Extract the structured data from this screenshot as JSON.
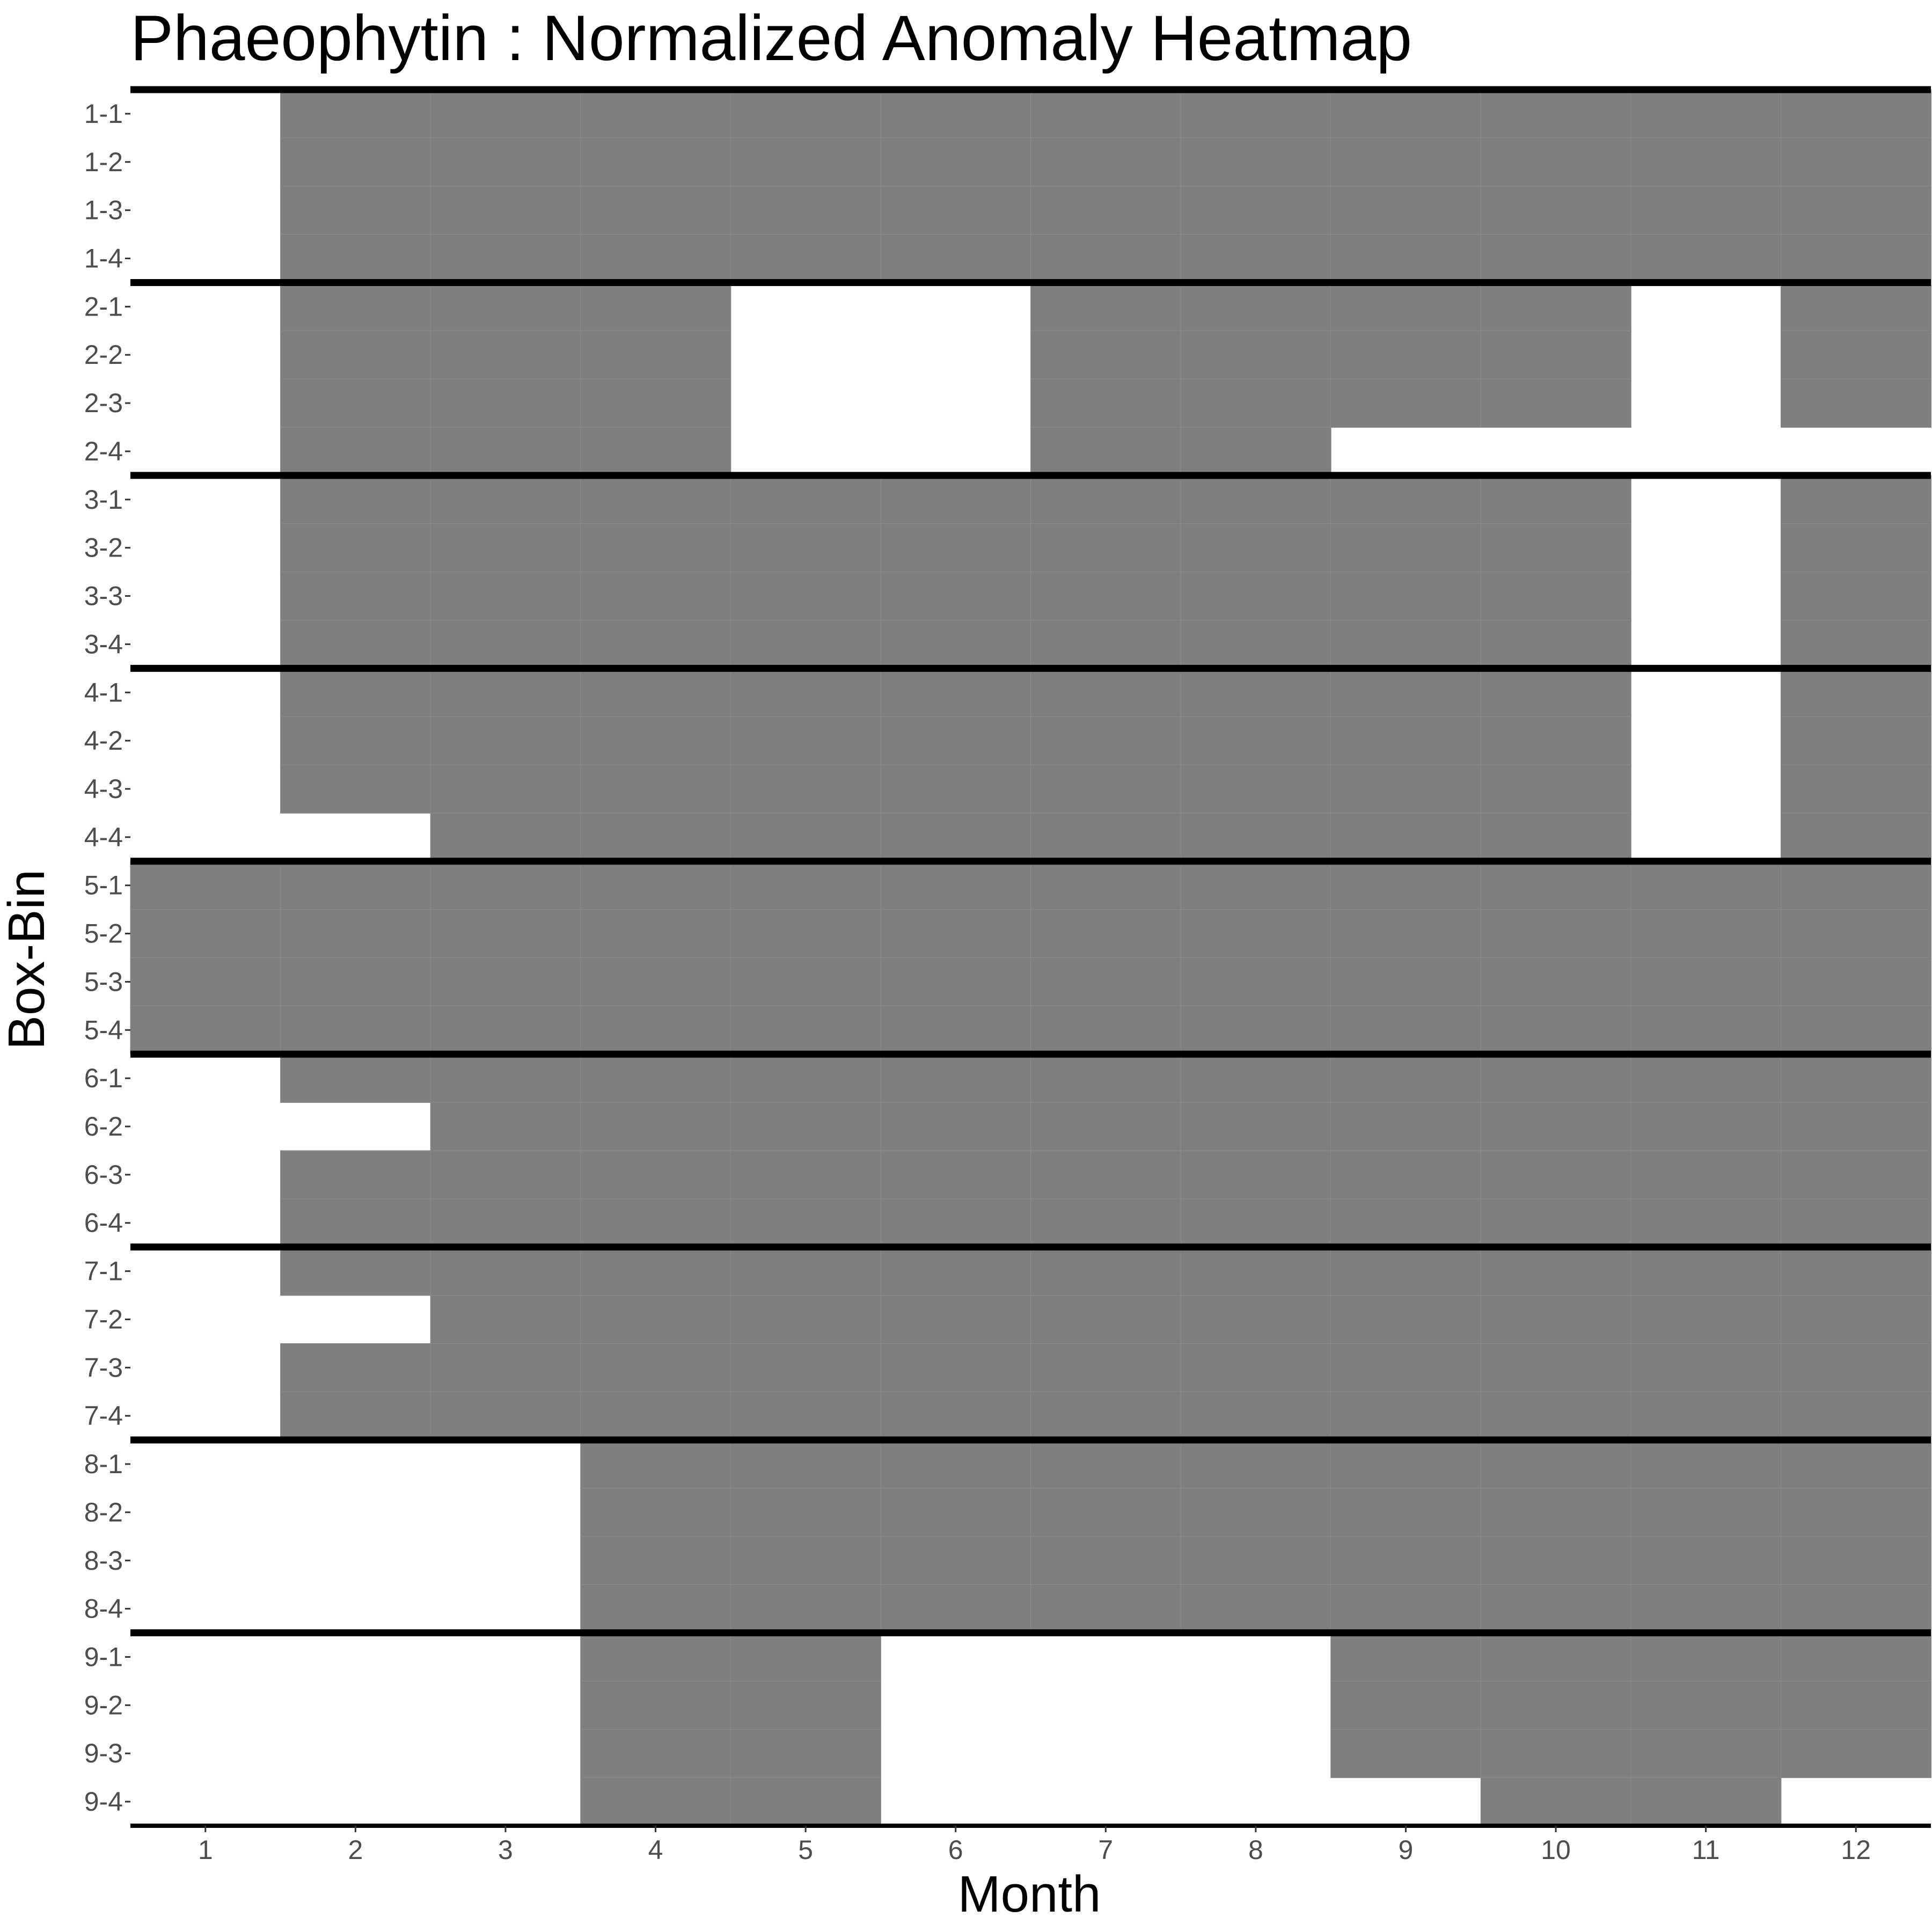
{
  "chart_data": {
    "type": "heatmap",
    "title": "Phaeophytin : Normalized Anomaly Heatmap",
    "xlabel": "Month",
    "ylabel": "Box-Bin",
    "x": [
      1,
      2,
      3,
      4,
      5,
      6,
      7,
      8,
      9,
      10,
      11,
      12
    ],
    "y": [
      "1-1",
      "1-2",
      "1-3",
      "1-4",
      "2-1",
      "2-2",
      "2-3",
      "2-4",
      "3-1",
      "3-2",
      "3-3",
      "3-4",
      "4-1",
      "4-2",
      "4-3",
      "4-4",
      "5-1",
      "5-2",
      "5-3",
      "5-4",
      "6-1",
      "6-2",
      "6-3",
      "6-4",
      "7-1",
      "7-2",
      "7-3",
      "7-4",
      "8-1",
      "8-2",
      "8-3",
      "8-4",
      "9-1",
      "9-2",
      "9-3",
      "9-4"
    ],
    "fill_color": "#7f7f7f",
    "missing_color": "#ffffff",
    "values": [
      [
        0,
        1,
        1,
        1,
        1,
        1,
        1,
        1,
        1,
        1,
        1,
        1
      ],
      [
        0,
        1,
        1,
        1,
        1,
        1,
        1,
        1,
        1,
        1,
        1,
        1
      ],
      [
        0,
        1,
        1,
        1,
        1,
        1,
        1,
        1,
        1,
        1,
        1,
        1
      ],
      [
        0,
        1,
        1,
        1,
        1,
        1,
        1,
        1,
        1,
        1,
        1,
        1
      ],
      [
        0,
        1,
        1,
        1,
        0,
        0,
        1,
        1,
        1,
        1,
        0,
        1
      ],
      [
        0,
        1,
        1,
        1,
        0,
        0,
        1,
        1,
        1,
        1,
        0,
        1
      ],
      [
        0,
        1,
        1,
        1,
        0,
        0,
        1,
        1,
        1,
        1,
        0,
        1
      ],
      [
        0,
        1,
        1,
        1,
        0,
        0,
        1,
        1,
        0,
        0,
        0,
        0
      ],
      [
        0,
        1,
        1,
        1,
        1,
        1,
        1,
        1,
        1,
        1,
        0,
        1
      ],
      [
        0,
        1,
        1,
        1,
        1,
        1,
        1,
        1,
        1,
        1,
        0,
        1
      ],
      [
        0,
        1,
        1,
        1,
        1,
        1,
        1,
        1,
        1,
        1,
        0,
        1
      ],
      [
        0,
        1,
        1,
        1,
        1,
        1,
        1,
        1,
        1,
        1,
        0,
        1
      ],
      [
        0,
        1,
        1,
        1,
        1,
        1,
        1,
        1,
        1,
        1,
        0,
        1
      ],
      [
        0,
        1,
        1,
        1,
        1,
        1,
        1,
        1,
        1,
        1,
        0,
        1
      ],
      [
        0,
        1,
        1,
        1,
        1,
        1,
        1,
        1,
        1,
        1,
        0,
        1
      ],
      [
        0,
        0,
        1,
        1,
        1,
        1,
        1,
        1,
        1,
        1,
        0,
        1
      ],
      [
        1,
        1,
        1,
        1,
        1,
        1,
        1,
        1,
        1,
        1,
        1,
        1
      ],
      [
        1,
        1,
        1,
        1,
        1,
        1,
        1,
        1,
        1,
        1,
        1,
        1
      ],
      [
        1,
        1,
        1,
        1,
        1,
        1,
        1,
        1,
        1,
        1,
        1,
        1
      ],
      [
        1,
        1,
        1,
        1,
        1,
        1,
        1,
        1,
        1,
        1,
        1,
        1
      ],
      [
        0,
        1,
        1,
        1,
        1,
        1,
        1,
        1,
        1,
        1,
        1,
        1
      ],
      [
        0,
        0,
        1,
        1,
        1,
        1,
        1,
        1,
        1,
        1,
        1,
        1
      ],
      [
        0,
        1,
        1,
        1,
        1,
        1,
        1,
        1,
        1,
        1,
        1,
        1
      ],
      [
        0,
        1,
        1,
        1,
        1,
        1,
        1,
        1,
        1,
        1,
        1,
        1
      ],
      [
        0,
        1,
        1,
        1,
        1,
        1,
        1,
        1,
        1,
        1,
        1,
        1
      ],
      [
        0,
        0,
        1,
        1,
        1,
        1,
        1,
        1,
        1,
        1,
        1,
        1
      ],
      [
        0,
        1,
        1,
        1,
        1,
        1,
        1,
        1,
        1,
        1,
        1,
        1
      ],
      [
        0,
        1,
        1,
        1,
        1,
        1,
        1,
        1,
        1,
        1,
        1,
        1
      ],
      [
        0,
        0,
        0,
        1,
        1,
        1,
        1,
        1,
        1,
        1,
        1,
        1
      ],
      [
        0,
        0,
        0,
        1,
        1,
        1,
        1,
        1,
        1,
        1,
        1,
        1
      ],
      [
        0,
        0,
        0,
        1,
        1,
        1,
        1,
        1,
        1,
        1,
        1,
        1
      ],
      [
        0,
        0,
        0,
        1,
        1,
        1,
        1,
        1,
        1,
        1,
        1,
        1
      ],
      [
        0,
        0,
        0,
        1,
        1,
        0,
        0,
        0,
        1,
        1,
        1,
        1
      ],
      [
        0,
        0,
        0,
        1,
        1,
        0,
        0,
        0,
        1,
        1,
        1,
        1
      ],
      [
        0,
        0,
        0,
        1,
        1,
        0,
        0,
        0,
        1,
        1,
        1,
        1
      ],
      [
        0,
        0,
        0,
        1,
        1,
        0,
        0,
        0,
        0,
        1,
        1,
        0
      ]
    ],
    "box_separators": [
      1,
      2,
      3,
      4,
      5,
      6,
      7,
      8
    ],
    "legend": "none",
    "grid": false
  }
}
